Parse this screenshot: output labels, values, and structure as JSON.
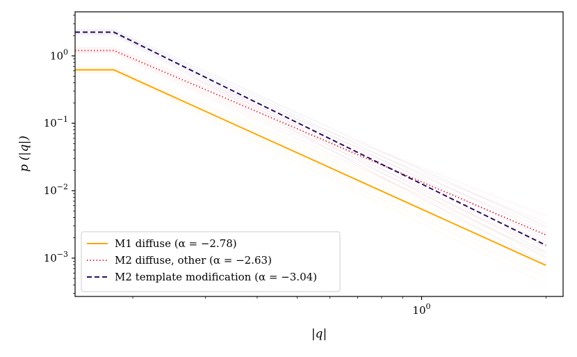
{
  "chart_data": {
    "type": "line",
    "title": "",
    "xlabel": "|q|",
    "ylabel": "p (|q|)",
    "xscale": "log",
    "yscale": "log",
    "xlim": [
      0.145,
      2.2
    ],
    "ylim": [
      0.00027,
      4.5
    ],
    "x_tick_labels": [
      {
        "value": 1.0,
        "base": "10",
        "exp": "0"
      }
    ],
    "y_tick_labels": [
      {
        "value": 0.001,
        "base": "10",
        "exp": "−3"
      },
      {
        "value": 0.01,
        "base": "10",
        "exp": "−2"
      },
      {
        "value": 0.1,
        "base": "10",
        "exp": "−1"
      },
      {
        "value": 1.0,
        "base": "10",
        "exp": "0"
      }
    ],
    "legend_position": "lower-left",
    "series": [
      {
        "name": "M1 diffuse (α = −2.78)",
        "color": "#FFA500",
        "style": "solid",
        "x": [
          0.145,
          0.18,
          2.0
        ],
        "y": [
          0.62,
          0.62,
          0.00078
        ]
      },
      {
        "name": "M2 diffuse, other (α = −2.63)",
        "color": "#E0344A",
        "style": "dotted",
        "x": [
          0.145,
          0.18,
          2.0
        ],
        "y": [
          1.2,
          1.2,
          0.0022
        ]
      },
      {
        "name": "M2 template modification (α = −3.04)",
        "color": "#2A0F5C",
        "style": "dashed",
        "x": [
          0.145,
          0.18,
          2.0
        ],
        "y": [
          2.25,
          2.25,
          0.00155
        ]
      }
    ]
  }
}
